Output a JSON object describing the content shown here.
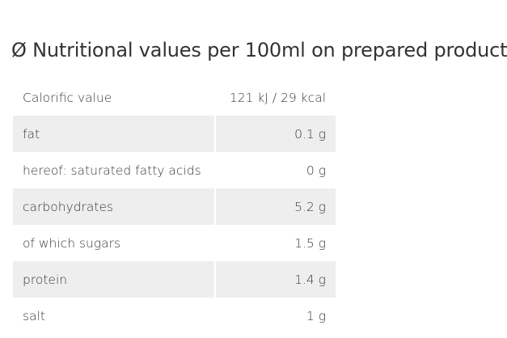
{
  "title": "Ø Nutritional values per 100ml on prepared product",
  "table": {
    "rows": [
      [
        "Calorific value",
        "121 kJ / 29 kcal"
      ],
      [
        "fat",
        "0.1 g"
      ],
      [
        "hereof: saturated fatty acids",
        "0 g"
      ],
      [
        "carbohydrates",
        "5.2 g"
      ],
      [
        "of which sugars",
        "1.5 g"
      ],
      [
        "protein",
        "1.4 g"
      ],
      [
        "salt",
        "1 g"
      ]
    ]
  }
}
